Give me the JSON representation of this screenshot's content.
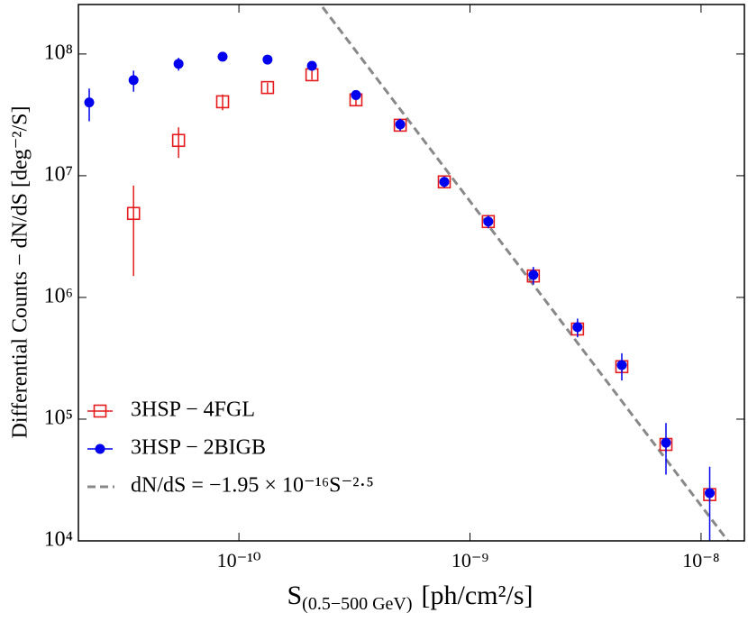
{
  "chart_data": {
    "type": "scatter",
    "x_label_main": "S",
    "x_label_sub": "(0.5−500 GeV)",
    "x_label_unit": "[ph/cm²/s]",
    "y_label": "Differential Counts  − dN/dS [deg⁻²/S]",
    "log_x": true,
    "log_y": true,
    "xlim": [
      2.02e-11,
      1.54e-08
    ],
    "ylim": [
      10000.0,
      255000000.0
    ],
    "xticks": [
      {
        "value": 1e-10,
        "label": "10⁻¹⁰"
      },
      {
        "value": 1e-09,
        "label": "10⁻⁹"
      },
      {
        "value": 1e-08,
        "label": "10⁻⁸"
      }
    ],
    "yticks": [
      {
        "value": 10000.0,
        "label": "10⁴"
      },
      {
        "value": 100000.0,
        "label": "10⁵"
      },
      {
        "value": 1000000.0,
        "label": "10⁶"
      },
      {
        "value": 10000000.0,
        "label": "10⁷"
      },
      {
        "value": 100000000.0,
        "label": "10⁸"
      }
    ],
    "legend": "lower left",
    "series": [
      {
        "name": "3HSP − 4FGL",
        "color": "#e41a1c",
        "marker": "open-square",
        "x": [
          3.5e-11,
          5.48e-11,
          8.5e-11,
          1.33e-10,
          2.07e-10,
          3.21e-10,
          4.99e-10,
          7.74e-10,
          1.2e-09,
          1.88e-09,
          2.92e-09,
          4.54e-09,
          7.05e-09,
          1.09e-08
        ],
        "values": [
          4900000.0,
          19500000.0,
          40500000.0,
          53000000.0,
          67500000.0,
          42000000.0,
          26000000.0,
          8900000.0,
          4200000.0,
          1500000.0,
          550000.0,
          270000.0,
          62000.0,
          24000.0
        ],
        "errors": [
          3400000.0,
          5500000.0,
          6000000.0,
          5000000.0,
          6000000.0,
          4000000.0,
          2500000.0,
          800000.0,
          400000.0,
          150000.0,
          60000.0,
          30000.0,
          8000.0,
          3000.0
        ]
      },
      {
        "name": "3HSP − 2BIGB",
        "color": "#0000ee",
        "marker": "filled-circle",
        "x": [
          2.25e-11,
          3.5e-11,
          5.48e-11,
          8.5e-11,
          1.33e-10,
          2.07e-10,
          3.21e-10,
          4.99e-10,
          7.74e-10,
          1.2e-09,
          1.88e-09,
          2.92e-09,
          4.54e-09,
          7.05e-09,
          1.09e-08
        ],
        "values": [
          40000000.0,
          61000000.0,
          83000000.0,
          95000000.0,
          90000000.0,
          80000000.0,
          46000000.0,
          26400000.0,
          8900000.0,
          4200000.0,
          1530000.0,
          570000.0,
          278000.0,
          64000.0,
          24700.0
        ],
        "errors": [
          12000000.0,
          12000000.0,
          10000000.0,
          6000000.0,
          5000000.0,
          5000000.0,
          4000000.0,
          3000000.0,
          900000.0,
          500000.0,
          250000.0,
          100000.0,
          70000.0,
          29000.0,
          16000.0
        ]
      }
    ],
    "power_law": {
      "name": "dN/dS = −1.95 × 10⁻¹⁶S⁻²·⁵",
      "coefficient": -1.95e-16,
      "exponent": -2.5,
      "color": "#888888"
    }
  }
}
